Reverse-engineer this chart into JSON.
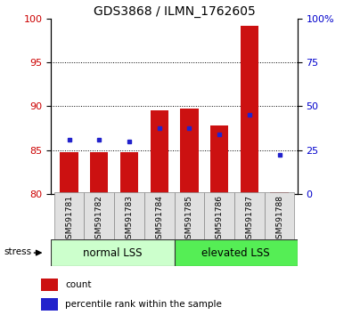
{
  "title": "GDS3868 / ILMN_1762605",
  "categories": [
    "GSM591781",
    "GSM591782",
    "GSM591783",
    "GSM591784",
    "GSM591785",
    "GSM591786",
    "GSM591787",
    "GSM591788"
  ],
  "red_values": [
    84.8,
    84.8,
    84.8,
    89.5,
    89.7,
    87.8,
    99.2,
    80.2
  ],
  "blue_values": [
    86.2,
    86.2,
    86.0,
    87.5,
    87.5,
    86.8,
    89.0,
    84.5
  ],
  "ylim": [
    80,
    100
  ],
  "yticks_left": [
    80,
    85,
    90,
    95,
    100
  ],
  "yticks_right": [
    "0",
    "25",
    "50",
    "75",
    "100%"
  ],
  "yticks_right_vals": [
    80,
    85,
    90,
    95,
    100
  ],
  "group1_label": "normal LSS",
  "group2_label": "elevated LSS",
  "group1_color": "#ccffcc",
  "group2_color": "#55ee55",
  "bar_color": "#cc1111",
  "dot_color": "#2222cc",
  "legend_red": "count",
  "legend_blue": "percentile rank within the sample",
  "tick_label_color_left": "#cc0000",
  "tick_label_color_right": "#0000cc",
  "bar_width": 0.6,
  "baseline": 80
}
